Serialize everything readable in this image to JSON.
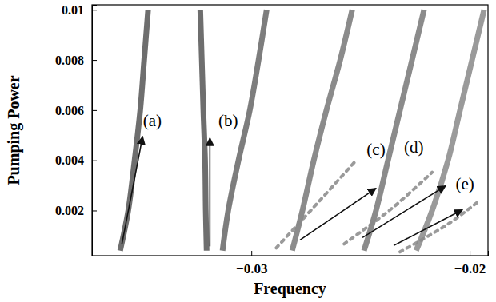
{
  "chart_data": {
    "type": "line",
    "x_label": "Frequency",
    "y_label": "Pumping Power",
    "xlim": [
      -0.0373,
      -0.01916
    ],
    "ylim": [
      0.0002,
      0.0102
    ],
    "xticks": [
      {
        "value": -0.03,
        "label": "−0.03"
      },
      {
        "value": -0.02,
        "label": "−0.02"
      }
    ],
    "yticks": [
      0.002,
      0.004,
      0.006,
      0.008,
      0.01
    ],
    "grid": false,
    "series": [
      {
        "color": "#555555",
        "line_style": "solid",
        "x": [
          -0.03601,
          -0.03564,
          -0.03535,
          -0.03509,
          -0.03491,
          -0.03473
        ],
        "values": [
          0.0004,
          0.002,
          0.004,
          0.006,
          0.008,
          0.01
        ]
      },
      {
        "color": "#555555",
        "line_style": "solid",
        "x": [
          -0.03205,
          -0.03209,
          -0.03212,
          -0.0322,
          -0.03227,
          -0.03234
        ],
        "values": [
          0.0004,
          0.002,
          0.004,
          0.006,
          0.008,
          0.01
        ]
      },
      {
        "color": "#666666",
        "line_style": "solid",
        "x": [
          -0.03132,
          -0.03106,
          -0.03059,
          -0.03007,
          -0.02967,
          -0.0293
        ],
        "values": [
          0.0004,
          0.002,
          0.004,
          0.006,
          0.008,
          0.01
        ]
      },
      {
        "color": "#777777",
        "line_style": "solid",
        "x": [
          -0.02813,
          -0.02766,
          -0.02714,
          -0.02656,
          -0.02593,
          -0.02538
        ],
        "values": [
          0.0004,
          0.002,
          0.004,
          0.006,
          0.008,
          0.01
        ]
      },
      {
        "color": "#777777",
        "line_style": "solid",
        "x": [
          -0.02484,
          -0.02429,
          -0.02374,
          -0.02319,
          -0.02264,
          -0.02209
        ],
        "values": [
          0.0004,
          0.002,
          0.004,
          0.006,
          0.008,
          0.01
        ]
      },
      {
        "color": "#888888",
        "line_style": "solid",
        "x": [
          -0.02245,
          -0.02172,
          -0.02099,
          -0.02044,
          -0.01989,
          -0.01934
        ],
        "values": [
          0.0004,
          0.002,
          0.004,
          0.006,
          0.008,
          0.01
        ]
      },
      {
        "color": "#888888",
        "line_style": "dotted",
        "x": [
          -0.02886,
          -0.02685,
          -0.0252
        ],
        "values": [
          0.000508,
          0.002413,
          0.004
        ]
      },
      {
        "color": "#888888",
        "line_style": "dotted",
        "x": [
          -0.02575,
          -0.02355,
          -0.02172
        ],
        "values": [
          0.000667,
          0.002095,
          0.003524
        ]
      },
      {
        "color": "#888888",
        "line_style": "dotted",
        "x": [
          -0.02319,
          -0.02099,
          -0.01952
        ],
        "values": [
          0.000349,
          0.00146,
          0.002413
        ]
      }
    ],
    "annotations": [
      {
        "text": "(a)",
        "x": -0.03454,
        "y": 0.005524,
        "arrow_from": [
          -0.03593,
          0.000667
        ],
        "arrow_to": [
          -0.03498,
          0.004952
        ]
      },
      {
        "text": "(b)",
        "x": -0.03106,
        "y": 0.005524,
        "arrow_from": [
          -0.0319,
          0.000571
        ],
        "arrow_to": [
          -0.0319,
          0.004889
        ]
      },
      {
        "text": "(c)",
        "x": -0.02429,
        "y": 0.00438,
        "arrow_from": [
          -0.02777,
          0.000825
        ],
        "arrow_to": [
          -0.02429,
          0.002889
        ]
      },
      {
        "text": "(d)",
        "x": -0.02256,
        "y": 0.004476,
        "arrow_from": [
          -0.02491,
          0.00092
        ],
        "arrow_to": [
          -0.0211,
          0.002984
        ]
      },
      {
        "text": "(e)",
        "x": -0.02022,
        "y": 0.002984,
        "arrow_from": [
          -0.02348,
          0.000603
        ],
        "arrow_to": [
          -0.02033,
          0.002032
        ]
      }
    ]
  }
}
